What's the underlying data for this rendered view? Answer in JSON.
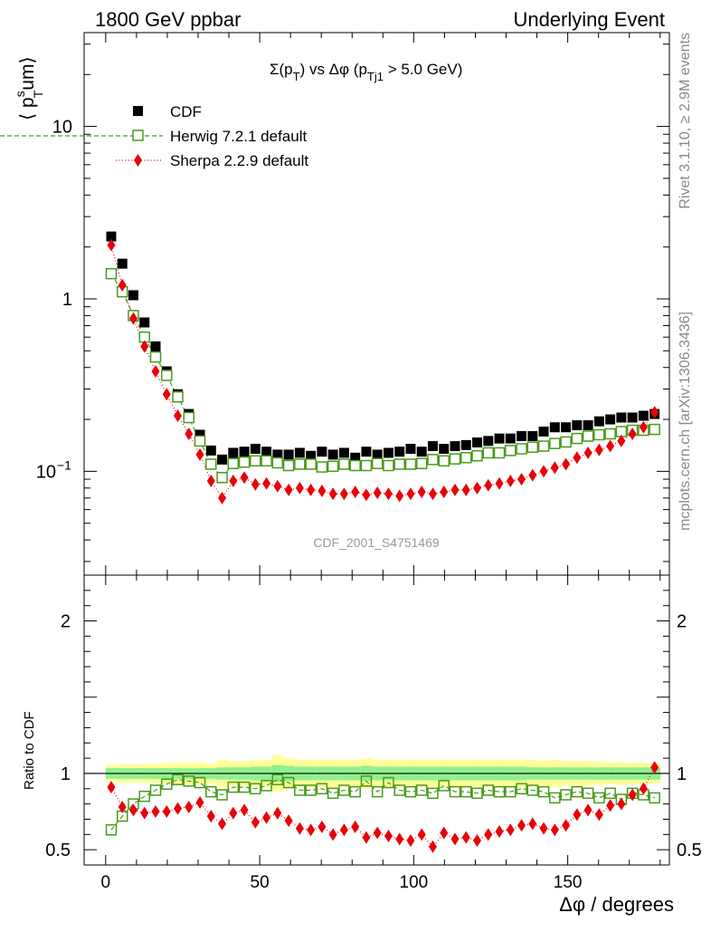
{
  "header": {
    "left": "1800 GeV ppbar",
    "right": "Underlying Event"
  },
  "side": {
    "rivet": "Rivet 3.1.10, ≥ 2.9M events",
    "mcplots": "mcplots.cern.ch [arXiv:1306.3436]"
  },
  "chart_data": {
    "type": "scatter",
    "title": "Σ(p_T) vs Δφ (p_Tj1 > 5.0 GeV)",
    "title_parts": {
      "sigma": "Σ(p",
      "T": "T",
      "mid": ") vs Δφ (p",
      "Tj1": "Tj1",
      "end": " > 5.0 GeV)"
    },
    "analysis_label": "CDF_2001_S4751469",
    "xlabel": "Δφ / degrees",
    "ylabel_top_parts": {
      "open": "⟨ p",
      "sup": "s",
      "sub": "T",
      "rest": "um⟩"
    },
    "ylabel_bottom": "Ratio to CDF",
    "xlim": [
      -7,
      183
    ],
    "ylim_top": [
      0.025,
      35
    ],
    "yscale_top": "log",
    "ylim_bottom": [
      0.4,
      2.3
    ],
    "xticks": [
      0,
      50,
      100,
      150
    ],
    "xtick_labels": [
      "0",
      "50",
      "100",
      "150"
    ],
    "yticks_top": [
      {
        "value": 0.1,
        "base": "10",
        "exp": "−1"
      },
      {
        "value": 1,
        "label": "1"
      },
      {
        "value": 10,
        "label": "10"
      }
    ],
    "yticks_bottom": [
      {
        "value": 0.5,
        "label": "0.5"
      },
      {
        "value": 1,
        "label": "1"
      },
      {
        "value": 2,
        "label": "2"
      }
    ],
    "legend_position": "top-left",
    "x": [
      1.8,
      5.4,
      9.0,
      12.6,
      16.2,
      19.8,
      23.4,
      27.0,
      30.6,
      34.2,
      37.8,
      41.4,
      45.0,
      48.6,
      52.2,
      55.8,
      59.4,
      63.0,
      66.6,
      70.2,
      73.8,
      77.4,
      81.0,
      84.6,
      88.2,
      91.8,
      95.4,
      99.0,
      102.6,
      106.2,
      109.8,
      113.4,
      117.0,
      120.6,
      124.2,
      127.8,
      131.4,
      135.0,
      138.6,
      142.2,
      145.8,
      149.4,
      153.0,
      156.6,
      160.2,
      163.8,
      167.4,
      171.0,
      174.6,
      178.2
    ],
    "series": [
      {
        "name": "CDF",
        "color": "#000000",
        "marker": "filled-square",
        "line": "none",
        "values": [
          2.3,
          1.6,
          1.05,
          0.73,
          0.53,
          0.38,
          0.28,
          0.215,
          0.163,
          0.132,
          0.117,
          0.128,
          0.13,
          0.135,
          0.13,
          0.125,
          0.125,
          0.128,
          0.123,
          0.13,
          0.125,
          0.128,
          0.12,
          0.13,
          0.125,
          0.128,
          0.13,
          0.135,
          0.13,
          0.14,
          0.135,
          0.14,
          0.142,
          0.147,
          0.15,
          0.155,
          0.155,
          0.16,
          0.16,
          0.17,
          0.18,
          0.18,
          0.185,
          0.185,
          0.195,
          0.2,
          0.205,
          0.205,
          0.21,
          0.215
        ]
      },
      {
        "name": "Herwig 7.2.1 default",
        "color": "#4a9a1c",
        "marker": "open-square",
        "line": "dashed",
        "values": [
          1.4,
          1.1,
          0.8,
          0.6,
          0.46,
          0.36,
          0.27,
          0.205,
          0.15,
          0.11,
          0.092,
          0.111,
          0.113,
          0.115,
          0.115,
          0.112,
          0.108,
          0.11,
          0.11,
          0.106,
          0.107,
          0.11,
          0.108,
          0.108,
          0.111,
          0.108,
          0.11,
          0.11,
          0.111,
          0.117,
          0.115,
          0.118,
          0.12,
          0.123,
          0.128,
          0.128,
          0.132,
          0.135,
          0.138,
          0.14,
          0.145,
          0.148,
          0.155,
          0.16,
          0.163,
          0.165,
          0.17,
          0.173,
          0.173,
          0.175
        ]
      },
      {
        "name": "Sherpa 2.2.9 default",
        "color": "#e8000b",
        "marker": "filled-diamond",
        "line": "dotted",
        "values": [
          2.05,
          1.2,
          0.77,
          0.53,
          0.38,
          0.28,
          0.21,
          0.165,
          0.125,
          0.088,
          0.07,
          0.088,
          0.092,
          0.084,
          0.085,
          0.082,
          0.078,
          0.08,
          0.078,
          0.077,
          0.074,
          0.074,
          0.076,
          0.073,
          0.075,
          0.074,
          0.072,
          0.074,
          0.076,
          0.074,
          0.076,
          0.078,
          0.078,
          0.08,
          0.083,
          0.085,
          0.088,
          0.09,
          0.095,
          0.1,
          0.105,
          0.11,
          0.12,
          0.128,
          0.133,
          0.14,
          0.15,
          0.165,
          0.18,
          0.22
        ]
      }
    ],
    "ratio_series": [
      {
        "name": "Herwig 7.2.1 default",
        "color": "#4a9a1c",
        "values": [
          0.63,
          0.72,
          0.8,
          0.85,
          0.89,
          0.93,
          0.96,
          0.95,
          0.94,
          0.88,
          0.86,
          0.91,
          0.91,
          0.9,
          0.92,
          0.96,
          0.94,
          0.89,
          0.89,
          0.9,
          0.87,
          0.89,
          0.88,
          0.95,
          0.88,
          0.94,
          0.89,
          0.88,
          0.89,
          0.87,
          0.92,
          0.88,
          0.88,
          0.87,
          0.89,
          0.88,
          0.88,
          0.9,
          0.89,
          0.88,
          0.84,
          0.86,
          0.88,
          0.87,
          0.84,
          0.87,
          0.83,
          0.87,
          0.86,
          0.84
        ]
      },
      {
        "name": "Sherpa 2.2.9 default",
        "color": "#e8000b",
        "values": [
          0.91,
          0.78,
          0.76,
          0.74,
          0.75,
          0.75,
          0.77,
          0.78,
          0.81,
          0.72,
          0.67,
          0.74,
          0.76,
          0.68,
          0.71,
          0.74,
          0.69,
          0.64,
          0.63,
          0.65,
          0.6,
          0.63,
          0.65,
          0.58,
          0.61,
          0.59,
          0.57,
          0.56,
          0.6,
          0.52,
          0.61,
          0.57,
          0.58,
          0.56,
          0.6,
          0.62,
          0.63,
          0.66,
          0.67,
          0.64,
          0.63,
          0.66,
          0.73,
          0.76,
          0.73,
          0.79,
          0.8,
          0.86,
          0.9,
          1.04
        ]
      }
    ],
    "band_inner_halfwidth": [
      0.035,
      0.035,
      0.035,
      0.035,
      0.035,
      0.035,
      0.035,
      0.035,
      0.035,
      0.035,
      0.04,
      0.04,
      0.04,
      0.045,
      0.045,
      0.055,
      0.05,
      0.045,
      0.045,
      0.045,
      0.045,
      0.045,
      0.045,
      0.05,
      0.045,
      0.045,
      0.045,
      0.045,
      0.045,
      0.045,
      0.045,
      0.045,
      0.045,
      0.045,
      0.045,
      0.045,
      0.045,
      0.045,
      0.04,
      0.04,
      0.04,
      0.04,
      0.04,
      0.04,
      0.04,
      0.04,
      0.04,
      0.04,
      0.04,
      0.04
    ],
    "band_outer_halfwidth": [
      0.055,
      0.06,
      0.06,
      0.06,
      0.065,
      0.065,
      0.07,
      0.07,
      0.075,
      0.065,
      0.09,
      0.08,
      0.08,
      0.085,
      0.09,
      0.12,
      0.1,
      0.09,
      0.09,
      0.09,
      0.09,
      0.09,
      0.09,
      0.1,
      0.09,
      0.09,
      0.09,
      0.09,
      0.09,
      0.09,
      0.09,
      0.09,
      0.09,
      0.09,
      0.09,
      0.09,
      0.09,
      0.09,
      0.09,
      0.085,
      0.09,
      0.08,
      0.08,
      0.08,
      0.075,
      0.07,
      0.075,
      0.07,
      0.07,
      0.065
    ],
    "band_colors": {
      "inner": "#90f090",
      "outer": "#ffff99"
    }
  }
}
